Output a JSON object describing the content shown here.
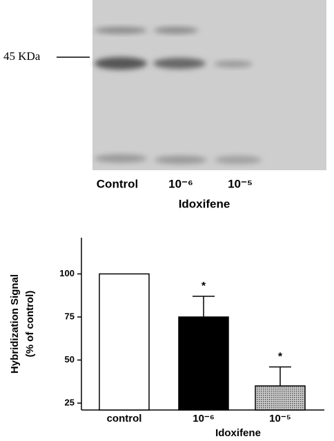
{
  "blot": {
    "marker_label": "45 KDa",
    "lanes": [
      "Control",
      "10⁻⁶",
      "10⁻⁵"
    ],
    "treatment_label": "Idoxifene"
  },
  "chart_data": {
    "type": "bar",
    "ylabel": [
      "Hybridization Signal",
      "(% of control)"
    ],
    "xlabel": "Idoxifene",
    "categories": [
      "control",
      "10⁻⁶",
      "10⁻⁵"
    ],
    "values": [
      100,
      75,
      35
    ],
    "errors": [
      null,
      12,
      11
    ],
    "markers": [
      null,
      "*",
      "*"
    ],
    "colors": [
      "#ffffff",
      "#000000",
      "#a8a8a8"
    ],
    "ylim": [
      21,
      121
    ],
    "yticks": [
      25,
      50,
      75,
      100
    ]
  }
}
